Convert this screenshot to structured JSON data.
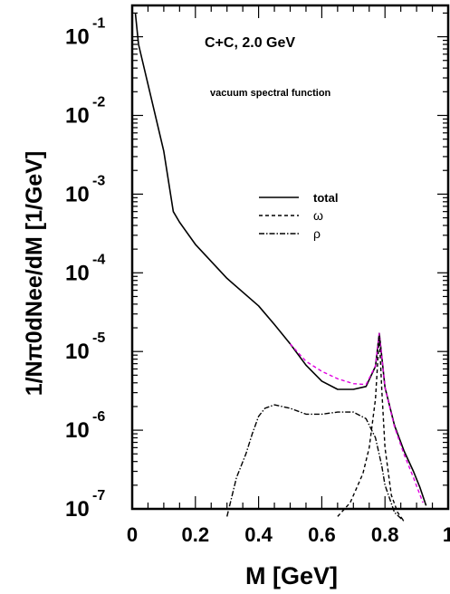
{
  "chart_data": {
    "type": "line",
    "title": "C+C, 2.0 GeV",
    "subtitle": "vacuum spectral function",
    "xlabel": "M [GeV]",
    "ylabel": "1/Nπ0dNee/dM [1/GeV]",
    "xlim": [
      0,
      1.0
    ],
    "ylim": [
      1e-07,
      0.25
    ],
    "yscale": "log",
    "x_ticks": [
      "0",
      "0.2",
      "0.4",
      "0.6",
      "0.8",
      "1"
    ],
    "x_tick_values": [
      0,
      0.2,
      0.4,
      0.6,
      0.8,
      1.0
    ],
    "y_ticks": [
      {
        "value": 0.1,
        "base": "10",
        "exp": "-1"
      },
      {
        "value": 0.01,
        "base": "10",
        "exp": "-2"
      },
      {
        "value": 0.001,
        "base": "10",
        "exp": "-3"
      },
      {
        "value": 0.0001,
        "base": "10",
        "exp": "-4"
      },
      {
        "value": 1e-05,
        "base": "10",
        "exp": "-5"
      },
      {
        "value": 1e-06,
        "base": "10",
        "exp": "-6"
      },
      {
        "value": 1e-07,
        "base": "10",
        "exp": "-7"
      }
    ],
    "legend": {
      "placement": "center",
      "entries": [
        "total",
        "ω",
        "ρ"
      ]
    },
    "series": [
      {
        "name": "total",
        "style": "solid",
        "color": "#000000",
        "x": [
          0.01,
          0.02,
          0.05,
          0.1,
          0.13,
          0.15,
          0.2,
          0.3,
          0.4,
          0.45,
          0.5,
          0.55,
          0.6,
          0.65,
          0.7,
          0.74,
          0.77,
          0.782,
          0.79,
          0.8,
          0.83,
          0.86,
          0.89,
          0.91,
          0.93
        ],
        "y": [
          0.2,
          0.08,
          0.025,
          0.0035,
          0.0006,
          0.00044,
          0.00023,
          8.5e-05,
          3.8e-05,
          2.2e-05,
          1.25e-05,
          6.7e-06,
          4.2e-06,
          3.3e-06,
          3.3e-06,
          3.6e-06,
          6.5e-06,
          1.7e-05,
          8.5e-06,
          3.5e-06,
          1.15e-06,
          5.5e-07,
          3e-07,
          1.9e-07,
          1.1e-07
        ]
      },
      {
        "name": "magenta",
        "style": "dashed",
        "color": "#e000e0",
        "x": [
          0.5,
          0.55,
          0.6,
          0.65,
          0.7,
          0.74,
          0.77,
          0.782,
          0.79,
          0.8,
          0.83,
          0.86,
          0.89,
          0.92
        ],
        "y": [
          1.25e-05,
          7.5e-06,
          5.6e-06,
          4.5e-06,
          3.9e-06,
          3.8e-06,
          6.6e-06,
          1.7e-05,
          8.5e-06,
          3.5e-06,
          1.1e-06,
          5e-07,
          2.5e-07,
          1.2e-07
        ]
      },
      {
        "name": "ω",
        "style": "dashed",
        "color": "#000000",
        "x": [
          0.65,
          0.69,
          0.73,
          0.75,
          0.77,
          0.782,
          0.79,
          0.8,
          0.82,
          0.84,
          0.86
        ],
        "y": [
          8e-08,
          1.2e-07,
          2.8e-07,
          6e-07,
          2.5e-06,
          1.6e-05,
          3.2e-06,
          6e-07,
          1.5e-07,
          9e-08,
          7e-08
        ]
      },
      {
        "name": "ρ",
        "style": "dashdot",
        "color": "#000000",
        "x": [
          0.3,
          0.33,
          0.36,
          0.38,
          0.4,
          0.42,
          0.45,
          0.5,
          0.55,
          0.6,
          0.65,
          0.7,
          0.74,
          0.77,
          0.79,
          0.8,
          0.83,
          0.86
        ],
        "y": [
          8e-08,
          2.5e-07,
          5e-07,
          9e-07,
          1.5e-06,
          1.9e-06,
          2.1e-06,
          1.9e-06,
          1.6e-06,
          1.6e-06,
          1.7e-06,
          1.7e-06,
          1.4e-06,
          8e-07,
          3.5e-07,
          2e-07,
          9e-08,
          7e-08
        ]
      }
    ]
  }
}
